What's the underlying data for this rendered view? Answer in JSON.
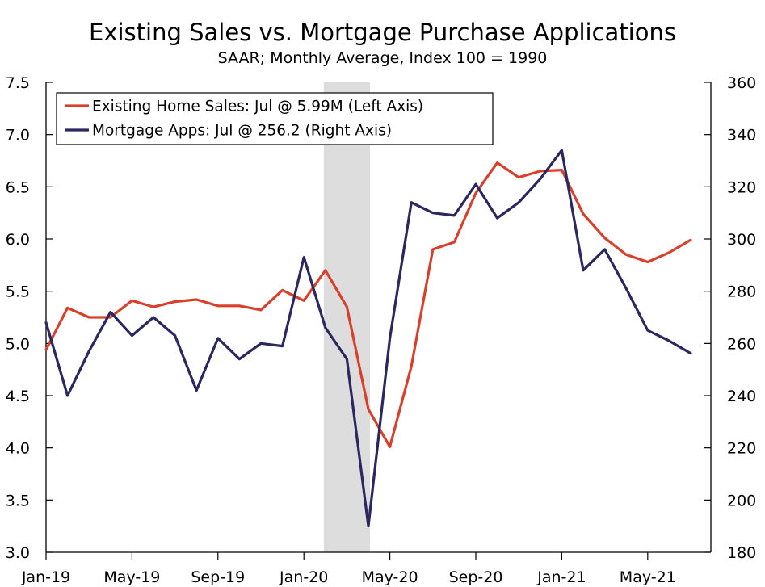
{
  "chart_data": {
    "type": "line",
    "title": "Existing Sales vs. Mortgage Purchase Applications",
    "subtitle": "SAAR; Monthly Average, Index 100 = 1990",
    "x": [
      "Jan-19",
      "Feb-19",
      "Mar-19",
      "Apr-19",
      "May-19",
      "Jun-19",
      "Jul-19",
      "Aug-19",
      "Sep-19",
      "Oct-19",
      "Nov-19",
      "Dec-19",
      "Jan-20",
      "Feb-20",
      "Mar-20",
      "Apr-20",
      "May-20",
      "Jun-20",
      "Jul-20",
      "Aug-20",
      "Sep-20",
      "Oct-20",
      "Nov-20",
      "Dec-20",
      "Jan-21",
      "Feb-21",
      "Mar-21",
      "Apr-21",
      "May-21",
      "Jun-21",
      "Jul-21"
    ],
    "x_tick_labels": [
      "Jan-19",
      "May-19",
      "Sep-19",
      "Jan-20",
      "May-20",
      "Sep-20",
      "Jan-21",
      "May-21"
    ],
    "left_axis": {
      "ylim": [
        3.0,
        7.5
      ],
      "ticks": [
        "3.0",
        "3.5",
        "4.0",
        "4.5",
        "5.0",
        "5.5",
        "6.0",
        "6.5",
        "7.0",
        "7.5"
      ]
    },
    "right_axis": {
      "ylim": [
        180,
        360
      ],
      "ticks": [
        "180",
        "200",
        "220",
        "240",
        "260",
        "280",
        "300",
        "320",
        "340",
        "360"
      ]
    },
    "shaded_region": {
      "from": "Feb-20",
      "to": "Apr-20",
      "color": "#dddddd"
    },
    "legend_position": "top-left",
    "series": [
      {
        "name": "Existing Home Sales: Jul @ 5.99M (Left Axis)",
        "axis": "left",
        "color": "#d9402b",
        "values": [
          4.94,
          5.34,
          5.25,
          5.25,
          5.41,
          5.35,
          5.4,
          5.42,
          5.36,
          5.36,
          5.32,
          5.51,
          5.41,
          5.7,
          5.35,
          4.37,
          4.01,
          4.78,
          5.9,
          5.97,
          6.44,
          6.73,
          6.59,
          6.65,
          6.66,
          6.24,
          6.01,
          5.85,
          5.78,
          5.87,
          5.99
        ]
      },
      {
        "name": "Mortgage Apps: Jul @ 256.2 (Right Axis)",
        "axis": "right",
        "color": "#2b2760",
        "values": [
          268,
          240,
          257,
          272,
          263,
          270,
          263,
          242,
          262,
          254,
          260,
          259,
          293,
          266,
          254,
          190,
          262,
          314,
          310,
          309,
          321,
          308,
          314,
          323,
          334,
          288,
          296,
          281,
          265,
          261,
          256.2
        ]
      }
    ]
  }
}
